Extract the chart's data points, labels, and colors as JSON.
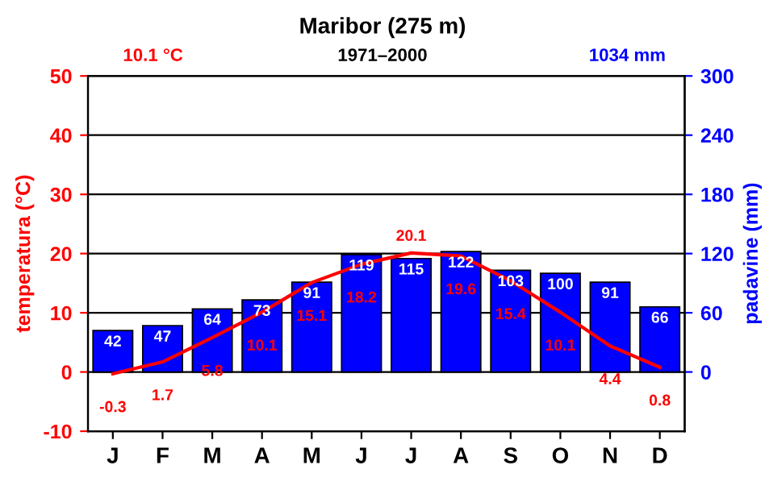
{
  "chart_data": {
    "type": "bar",
    "title": "Maribor (275 m)",
    "annotations": [
      "10.1 °C",
      "1971–2000",
      "1034 mm"
    ],
    "categories": [
      "J",
      "F",
      "M",
      "A",
      "M",
      "J",
      "J",
      "A",
      "S",
      "O",
      "N",
      "D"
    ],
    "series": [
      {
        "name": null,
        "type": "line",
        "color": "#ff0000",
        "values": [
          -0.3,
          1.7,
          5.8,
          10.1,
          15.1,
          18.2,
          20.1,
          19.6,
          15.4,
          10.1,
          4.4,
          0.8
        ]
      },
      {
        "name": null,
        "axis": "y2",
        "color": "#0000ff",
        "values": [
          42,
          47,
          64,
          73,
          91,
          119,
          115,
          122,
          103,
          100,
          91,
          66
        ]
      }
    ],
    "ylabel": "temperatura (°C)",
    "y2label": "padavine (mm)",
    "ylim": [
      -10,
      50
    ],
    "yticks": [
      -10,
      0,
      10,
      20,
      30,
      40,
      50
    ],
    "y2lim": [
      -60,
      300
    ],
    "y2ticks": [
      0,
      60,
      120,
      180,
      240,
      300
    ],
    "grid": "y",
    "data_labels": true,
    "legend": false,
    "marker": "none",
    "line_style": "solid"
  }
}
